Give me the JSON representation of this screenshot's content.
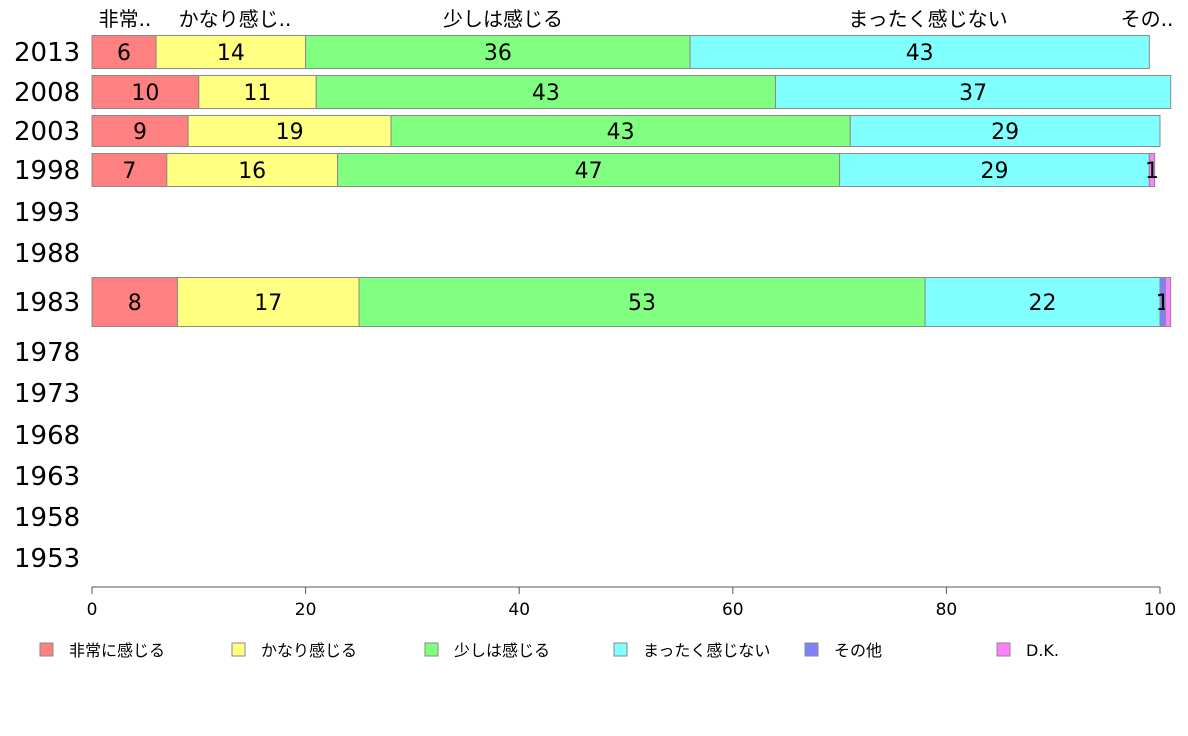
{
  "chart_data": {
    "type": "bar",
    "orientation": "horizontal",
    "stacked": true,
    "categories": [
      "2013",
      "2008",
      "2003",
      "1998",
      "1993",
      "1988",
      "1983",
      "1978",
      "1973",
      "1968",
      "1963",
      "1958",
      "1953"
    ],
    "series": [
      {
        "name": "非常に感じる",
        "color": "#ff8080",
        "values": [
          6,
          10,
          9,
          7,
          null,
          null,
          8,
          null,
          null,
          null,
          null,
          null,
          null
        ]
      },
      {
        "name": "かなり感じる",
        "color": "#ffff80",
        "values": [
          14,
          11,
          19,
          16,
          null,
          null,
          17,
          null,
          null,
          null,
          null,
          null,
          null
        ]
      },
      {
        "name": "少しは感じる",
        "color": "#80ff80",
        "values": [
          36,
          43,
          43,
          47,
          null,
          null,
          53,
          null,
          null,
          null,
          null,
          null,
          null
        ]
      },
      {
        "name": "まったく感じない",
        "color": "#80ffff",
        "values": [
          43,
          37,
          29,
          29,
          null,
          null,
          22,
          null,
          null,
          null,
          null,
          null,
          null
        ]
      },
      {
        "name": "その他",
        "color": "#8080ff",
        "values": [
          0,
          0,
          0,
          0,
          null,
          null,
          0.5,
          null,
          null,
          null,
          null,
          null,
          null
        ]
      },
      {
        "name": "D.K.",
        "color": "#ff80ff",
        "values": [
          0,
          0,
          0,
          0.5,
          null,
          null,
          0.5,
          null,
          null,
          null,
          null,
          null,
          null
        ]
      }
    ],
    "data_labels": [
      [
        "6",
        "14",
        "36",
        "43",
        "",
        ""
      ],
      [
        "10",
        "11",
        "43",
        "37",
        "",
        ""
      ],
      [
        "9",
        "19",
        "43",
        "29",
        "",
        ""
      ],
      [
        "7",
        "16",
        "47",
        "29",
        "",
        "1"
      ],
      [
        "",
        "",
        "",
        "",
        "",
        ""
      ],
      [
        "",
        "",
        "",
        "",
        "",
        ""
      ],
      [
        "8",
        "17",
        "53",
        "22",
        "1",
        ""
      ],
      [
        "",
        "",
        "",
        "",
        "",
        ""
      ],
      [
        "",
        "",
        "",
        "",
        "",
        ""
      ],
      [
        "",
        "",
        "",
        "",
        "",
        ""
      ],
      [
        "",
        "",
        "",
        "",
        "",
        ""
      ],
      [
        "",
        "",
        "",
        "",
        "",
        ""
      ],
      [
        "",
        "",
        "",
        "",
        "",
        ""
      ]
    ],
    "top_labels": [
      "非常..",
      "かなり感じ..",
      "少しは感じる",
      "",
      "まったく感じない",
      "その.."
    ],
    "x_ticks": [
      "0",
      "20",
      "40",
      "60",
      "80",
      "100"
    ],
    "xlim": [
      0,
      100
    ],
    "legend_position": "bottom",
    "grid": false
  }
}
